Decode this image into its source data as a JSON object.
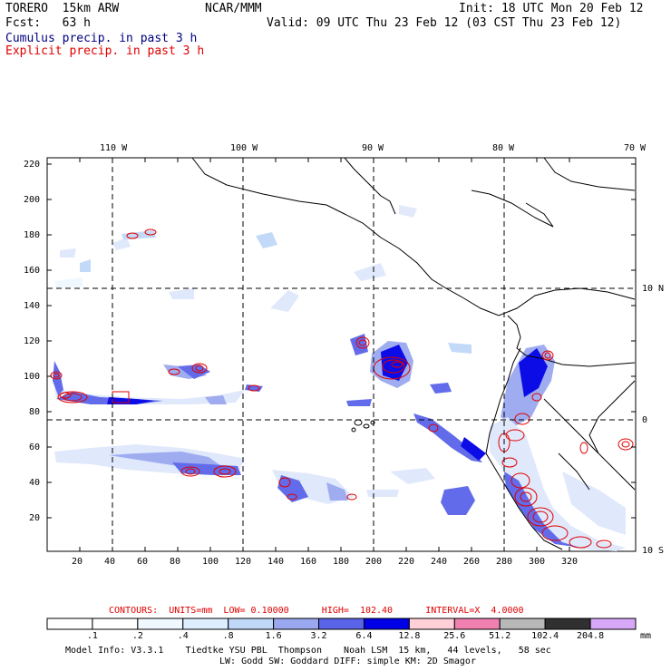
{
  "header": {
    "model": "TORERO  15km ARW",
    "org": "NCAR/MMM",
    "init": "Init: 18 UTC Mon 20 Feb 12",
    "fcst": "Fcst:   63 h",
    "valid": "Valid: 09 UTC Thu 23 Feb 12 (03 CST Thu 23 Feb 12)",
    "field1": "Cumulus precip. in past 3 h",
    "field2": "Explicit precip. in past 3 h",
    "field1_color": "#000080",
    "field2_color": "#e00000"
  },
  "axes": {
    "lon_labels": [
      "110 W",
      "100 W",
      "90 W",
      "80 W",
      "70 W"
    ],
    "lat_labels": [
      "10 N",
      "0",
      "10 S"
    ],
    "x_ticks": [
      "20",
      "40",
      "60",
      "80",
      "100",
      "120",
      "140",
      "160",
      "180",
      "200",
      "220",
      "240",
      "260",
      "280",
      "300",
      "320"
    ],
    "y_ticks": [
      "220",
      "200",
      "180",
      "160",
      "140",
      "120",
      "100",
      "80",
      "60",
      "40",
      "20"
    ]
  },
  "contours": {
    "label": "CONTOURS:  UNITS=mm  LOW= 0.10000      HIGH=  102.40      INTERVAL=X  4.0000",
    "color": "#e00000"
  },
  "colorbar": {
    "labels": [
      ".1",
      ".2",
      ".4",
      ".8",
      "1.6",
      "3.2",
      "6.4",
      "12.8",
      "25.6",
      "51.2",
      "102.4",
      "204.8"
    ],
    "unit": "mm",
    "colors": [
      "#ffffff",
      "#ffffff",
      "#f0f8ff",
      "#ddeeff",
      "#c0d8f8",
      "#9aa8f0",
      "#5a64e8",
      "#0000e6",
      "#ffd0d8",
      "#f080b0",
      "#b8b8b8",
      "#303030",
      "#d8a8f8"
    ]
  },
  "footer": {
    "line1": "Model Info: V3.3.1    Tiedtke YSU PBL  Thompson    Noah LSM  15 km,   44 levels,   58 sec",
    "line2": "LW: Godd SW: Goddard DIFF: simple KM: 2D Smagor"
  }
}
